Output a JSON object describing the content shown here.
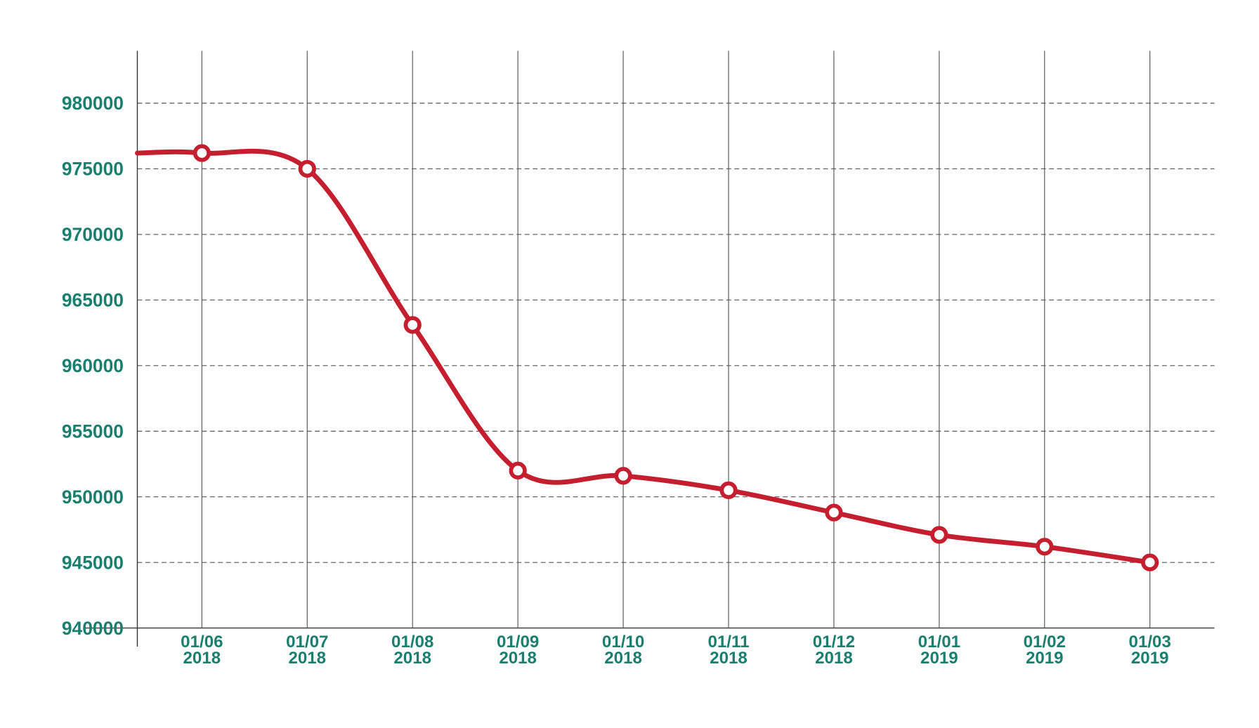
{
  "chart_data": {
    "type": "line",
    "title": "",
    "xlabel": "",
    "ylabel": "",
    "ylim": [
      940000,
      980000
    ],
    "y_ticks": [
      "940000",
      "945000",
      "950000",
      "955000",
      "960000",
      "965000",
      "970000",
      "975000",
      "980000"
    ],
    "grid": true,
    "smooth": true,
    "line_start_value": 976200,
    "categories": [
      [
        "01/06",
        "2018"
      ],
      [
        "01/07",
        "2018"
      ],
      [
        "01/08",
        "2018"
      ],
      [
        "01/09",
        "2018"
      ],
      [
        "01/10",
        "2018"
      ],
      [
        "01/11",
        "2018"
      ],
      [
        "01/12",
        "2018"
      ],
      [
        "01/01",
        "2019"
      ],
      [
        "01/02",
        "2019"
      ],
      [
        "01/03",
        "2019"
      ]
    ],
    "values": [
      976200,
      975000,
      963100,
      952000,
      951600,
      950500,
      948800,
      947100,
      946200,
      945000
    ],
    "colors": {
      "line": "#c41e2f",
      "labels": "#1a7f6f",
      "grid": "#555555"
    }
  }
}
